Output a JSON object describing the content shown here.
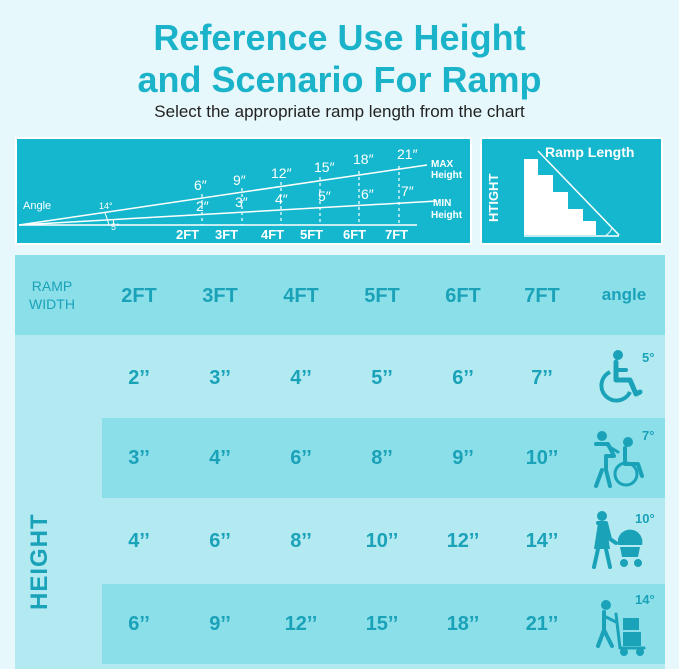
{
  "header": {
    "title_line1": "Reference Use Height",
    "title_line2": "and Scenario For Ramp",
    "subtitle": "Select the appropriate ramp length from the chart"
  },
  "diagram": {
    "angle_label": "Angle",
    "max_angle": "14°",
    "min_angle": "5°",
    "max_label_1": "MAX",
    "max_label_2": "Height",
    "min_label_1": "MIN",
    "min_label_2": "Height",
    "max_heights": [
      "6″",
      "9″",
      "12″",
      "15″",
      "18″",
      "21″"
    ],
    "min_heights": [
      "2″",
      "3″",
      "4″",
      "5″",
      "6″",
      "7″"
    ],
    "lengths": [
      "2FT",
      "3FT",
      "4FT",
      "5FT",
      "6FT",
      "7FT"
    ]
  },
  "ramp_figure": {
    "length_label": "Ramp Length",
    "height_label": "HTIGHT"
  },
  "table": {
    "ramp_width_label_1": "RAMP",
    "ramp_width_label_2": "WIDTH",
    "columns": [
      "2FT",
      "3FT",
      "4FT",
      "5FT",
      "6FT",
      "7FT"
    ],
    "angle_header": "angle",
    "height_label": "HEIGHT",
    "rows": [
      {
        "values": [
          "2’’",
          "3’’",
          "4’’",
          "5’’",
          "6’’",
          "7’’"
        ],
        "angle": "5°",
        "icon": "wheelchair-icon"
      },
      {
        "values": [
          "3’’",
          "4’’",
          "6’’",
          "8’’",
          "9’’",
          "10’’"
        ],
        "angle": "7°",
        "icon": "assisted-wheelchair-icon"
      },
      {
        "values": [
          "4’’",
          "6’’",
          "8’’",
          "10’’",
          "12’’",
          "14’’"
        ],
        "angle": "10°",
        "icon": "stroller-icon"
      },
      {
        "values": [
          "6’’",
          "9’’",
          "12’’",
          "15’’",
          "18’’",
          "21’’"
        ],
        "angle": "14°",
        "icon": "hand-truck-icon"
      }
    ]
  },
  "colors": {
    "accent": "#1bb3c9",
    "dark_row": "#8adfe9",
    "light_row": "#b3eaf1",
    "page_bg": "#e6f8fb"
  }
}
